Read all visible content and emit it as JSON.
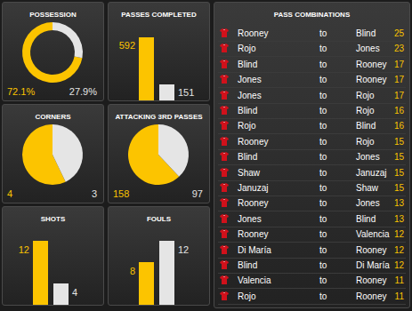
{
  "chart_data": [
    {
      "type": "donut",
      "title": "POSSESSION",
      "values": [
        72.1,
        27.9
      ],
      "value_labels": [
        "72.1%",
        "27.9%"
      ],
      "colors": [
        "#fcc400",
        "#e5e5e5"
      ],
      "data_labels": true
    },
    {
      "type": "bar",
      "title": "PASSES COMPLETED",
      "values": [
        592,
        151
      ],
      "colors": [
        "#fcc400",
        "#e5e5e5"
      ],
      "ylim": [
        0,
        600
      ],
      "data_labels": true,
      "tick_labels": false
    },
    {
      "type": "pie",
      "title": "CORNERS",
      "values": [
        4,
        3
      ],
      "colors": [
        "#fcc400",
        "#e5e5e5"
      ],
      "data_labels": true
    },
    {
      "type": "pie",
      "title": "ATTACKING 3RD PASSES",
      "values": [
        158,
        97
      ],
      "colors": [
        "#fcc400",
        "#e5e5e5"
      ],
      "data_labels": true
    },
    {
      "type": "bar",
      "title": "SHOTS",
      "values": [
        12,
        4
      ],
      "colors": [
        "#fcc400",
        "#e5e5e5"
      ],
      "ylim": [
        0,
        12
      ],
      "data_labels": true,
      "tick_labels": false
    },
    {
      "type": "bar",
      "title": "FOULS",
      "values": [
        8,
        12
      ],
      "colors": [
        "#fcc400",
        "#e5e5e5"
      ],
      "ylim": [
        0,
        12
      ],
      "data_labels": true,
      "tick_labels": false
    }
  ],
  "table": {
    "title": "PASS COMBINATIONS",
    "rows": [
      [
        "Rooney",
        "to",
        "Blind",
        25
      ],
      [
        "Rojo",
        "to",
        "Jones",
        23
      ],
      [
        "Blind",
        "to",
        "Rooney",
        17
      ],
      [
        "Jones",
        "to",
        "Rooney",
        17
      ],
      [
        "Jones",
        "to",
        "Rojo",
        17
      ],
      [
        "Blind",
        "to",
        "Rojo",
        16
      ],
      [
        "Rojo",
        "to",
        "Blind",
        16
      ],
      [
        "Rooney",
        "to",
        "Rojo",
        15
      ],
      [
        "Blind",
        "to",
        "Jones",
        15
      ],
      [
        "Shaw",
        "to",
        "Januzaj",
        15
      ],
      [
        "Januzaj",
        "to",
        "Shaw",
        15
      ],
      [
        "Rooney",
        "to",
        "Jones",
        13
      ],
      [
        "Jones",
        "to",
        "Blind",
        13
      ],
      [
        "Rooney",
        "to",
        "Valencia",
        12
      ],
      [
        "Di María",
        "to",
        "Rooney",
        12
      ],
      [
        "Blind",
        "to",
        "Di María",
        12
      ],
      [
        "Valencia",
        "to",
        "Rooney",
        11
      ],
      [
        "Rojo",
        "to",
        "Rooney",
        11
      ]
    ]
  }
}
